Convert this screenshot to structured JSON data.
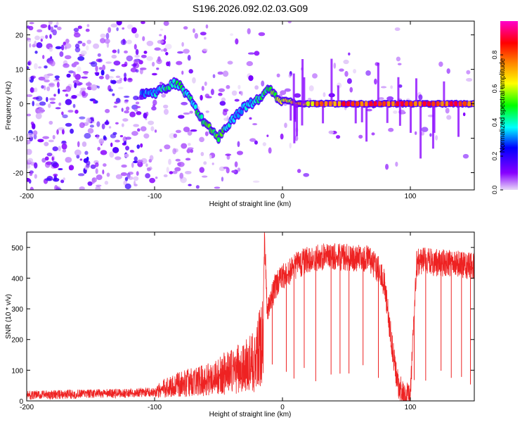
{
  "title": "S196.2026.092.02.03.G09",
  "chart_data": [
    {
      "type": "heatmap",
      "xlabel": "Height of straight line (km)",
      "ylabel": "Frequency (Hz)",
      "xlim": [
        -200,
        150
      ],
      "ylim": [
        -25,
        24
      ],
      "xticks": [
        -200,
        -100,
        0,
        100
      ],
      "yticks": [
        -20,
        -10,
        0,
        10,
        20
      ],
      "xtick_labels": [
        "-200",
        "-100",
        "0",
        "100"
      ],
      "ytick_labels": [
        "-20",
        "-10",
        "0",
        "10",
        "20"
      ],
      "colorbar": {
        "label": "Normalized spectral amplitude",
        "range": [
          0,
          1
        ],
        "ticks": [
          0.0,
          0.2,
          0.4,
          0.6,
          0.8
        ],
        "tick_labels": [
          "0.0",
          "0.2",
          "0.4",
          "0.6",
          "0.8"
        ],
        "colors": [
          "#e8d8f8",
          "#8800ff",
          "#0000ff",
          "#00ffff",
          "#00ff00",
          "#ffff00",
          "#ff8800",
          "#ff0000",
          "#ff00cc"
        ]
      },
      "ridge": {
        "x": [
          -110,
          -100,
          -95,
          -90,
          -85,
          -80,
          -75,
          -70,
          -65,
          -60,
          -55,
          -50,
          -45,
          -40,
          -35,
          -30,
          -25,
          -20,
          -15,
          -10,
          -5,
          0,
          5,
          10,
          20,
          30,
          40,
          50,
          60,
          70,
          80,
          90,
          100,
          110,
          120,
          130,
          140,
          150
        ],
        "freq": [
          3,
          3,
          4,
          5,
          6,
          5,
          3,
          0,
          -3,
          -6,
          -8,
          -10,
          -7,
          -5,
          -3,
          -1,
          0,
          1,
          3,
          4,
          2,
          1,
          1,
          0,
          0,
          0,
          0,
          0,
          0,
          0,
          0,
          0,
          0,
          0,
          0,
          0,
          0,
          0
        ],
        "amplitude": [
          0.3,
          0.35,
          0.4,
          0.45,
          0.45,
          0.45,
          0.4,
          0.4,
          0.45,
          0.5,
          0.5,
          0.5,
          0.45,
          0.4,
          0.35,
          0.35,
          0.35,
          0.4,
          0.45,
          0.5,
          0.55,
          0.6,
          0.6,
          0.7,
          0.75,
          0.8,
          0.85,
          0.9,
          0.9,
          0.9,
          0.9,
          0.9,
          0.9,
          0.9,
          0.9,
          0.9,
          0.9,
          0.9
        ]
      }
    },
    {
      "type": "line",
      "xlabel": "Height of straight line (km)",
      "ylabel": "SNR (10 * v/v)",
      "xlim": [
        -200,
        150
      ],
      "ylim": [
        0,
        550
      ],
      "xticks": [
        -200,
        -100,
        0,
        100
      ],
      "yticks": [
        0,
        100,
        200,
        300,
        400,
        500
      ],
      "xtick_labels": [
        "-200",
        "-100",
        "0",
        "100"
      ],
      "ytick_labels": [
        "0",
        "100",
        "200",
        "300",
        "400",
        "500"
      ],
      "series": [
        {
          "name": "SNR",
          "color": "#ee2222",
          "x": [
            -200,
            -180,
            -160,
            -140,
            -120,
            -100,
            -90,
            -80,
            -70,
            -60,
            -50,
            -40,
            -30,
            -20,
            -15,
            -14,
            -12,
            -10,
            -5,
            0,
            5,
            10,
            15,
            20,
            25,
            30,
            35,
            40,
            45,
            50,
            55,
            60,
            65,
            70,
            75,
            80,
            85,
            90,
            95,
            100,
            105,
            110,
            115,
            120,
            125,
            130,
            135,
            140,
            145,
            150
          ],
          "y": [
            18,
            20,
            22,
            24,
            25,
            30,
            50,
            60,
            70,
            75,
            90,
            110,
            120,
            150,
            260,
            540,
            300,
            320,
            380,
            400,
            420,
            440,
            450,
            460,
            465,
            470,
            470,
            470,
            470,
            470,
            460,
            470,
            465,
            450,
            430,
            380,
            200,
            60,
            10,
            20,
            450,
            455,
            455,
            450,
            450,
            450,
            445,
            445,
            440,
            440
          ]
        }
      ]
    }
  ]
}
